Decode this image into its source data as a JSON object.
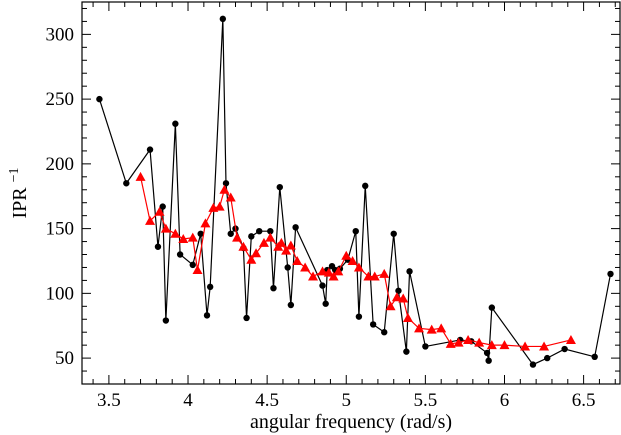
{
  "chart_data": {
    "type": "line",
    "title": "",
    "xlabel": "angular frequency (rad/s)",
    "ylabel_main": "IPR",
    "ylabel_sup": "−1",
    "xlim": [
      3.33,
      6.73
    ],
    "ylim": [
      30,
      325
    ],
    "xticks": [
      3.5,
      4,
      4.5,
      5,
      5.5,
      6,
      6.5
    ],
    "xtick_labels": [
      "3.5",
      "4",
      "4.5",
      "5",
      "5.5",
      "6",
      "6.5"
    ],
    "xminor_step": 0.1,
    "yticks": [
      50,
      100,
      150,
      200,
      250,
      300
    ],
    "ytick_labels": [
      "50",
      "100",
      "150",
      "200",
      "250",
      "300"
    ],
    "yminor_step": 10,
    "grid": false,
    "legend": "none",
    "series": [
      {
        "color": "#000000",
        "marker": "circle",
        "x": [
          3.44,
          3.61,
          3.76,
          3.81,
          3.84,
          3.86,
          3.92,
          3.95,
          4.03,
          4.08,
          4.12,
          4.14,
          4.22,
          4.24,
          4.27,
          4.3,
          4.35,
          4.37,
          4.4,
          4.45,
          4.52,
          4.54,
          4.58,
          4.63,
          4.65,
          4.68,
          4.85,
          4.87,
          4.88,
          4.91,
          4.93,
          4.96,
          5.01,
          5.06,
          5.08,
          5.12,
          5.17,
          5.24,
          5.3,
          5.33,
          5.38,
          5.4,
          5.5,
          5.72,
          5.79,
          5.89,
          5.9,
          5.92,
          6.18,
          6.27,
          6.38,
          6.57,
          6.67
        ],
        "y": [
          250,
          185,
          211,
          136,
          167,
          79,
          231,
          130,
          122,
          146,
          83,
          105,
          312,
          185,
          146,
          150,
          135,
          81,
          144,
          148,
          148,
          104,
          182,
          120,
          91,
          151,
          106,
          92,
          118,
          121,
          118,
          119,
          126,
          148,
          82,
          183,
          76,
          70,
          146,
          102,
          55,
          117,
          59,
          64,
          63,
          54,
          48,
          89,
          45,
          50,
          57,
          51,
          115
        ]
      },
      {
        "color": "#ff0000",
        "marker": "triangle",
        "x": [
          3.7,
          3.76,
          3.82,
          3.86,
          3.92,
          3.97,
          4.03,
          4.06,
          4.11,
          4.16,
          4.2,
          4.23,
          4.27,
          4.31,
          4.35,
          4.4,
          4.43,
          4.48,
          4.52,
          4.57,
          4.59,
          4.62,
          4.65,
          4.69,
          4.74,
          4.79,
          4.85,
          4.89,
          4.92,
          4.95,
          5.0,
          5.04,
          5.08,
          5.14,
          5.18,
          5.24,
          5.28,
          5.32,
          5.36,
          5.39,
          5.46,
          5.54,
          5.6,
          5.66,
          5.71,
          5.77,
          5.84,
          5.92,
          6.0,
          6.13,
          6.25,
          6.42
        ],
        "y": [
          190,
          156,
          163,
          150,
          146,
          142,
          143,
          118,
          154,
          166,
          167,
          180,
          174,
          143,
          136,
          126,
          131,
          139,
          143,
          136,
          139,
          133,
          137,
          125,
          120,
          113,
          117,
          116,
          113,
          117,
          129,
          125,
          120,
          113,
          113,
          115,
          90,
          97,
          96,
          81,
          73,
          72,
          73,
          61,
          62,
          64,
          62,
          60,
          60,
          59,
          59,
          64
        ]
      }
    ]
  }
}
